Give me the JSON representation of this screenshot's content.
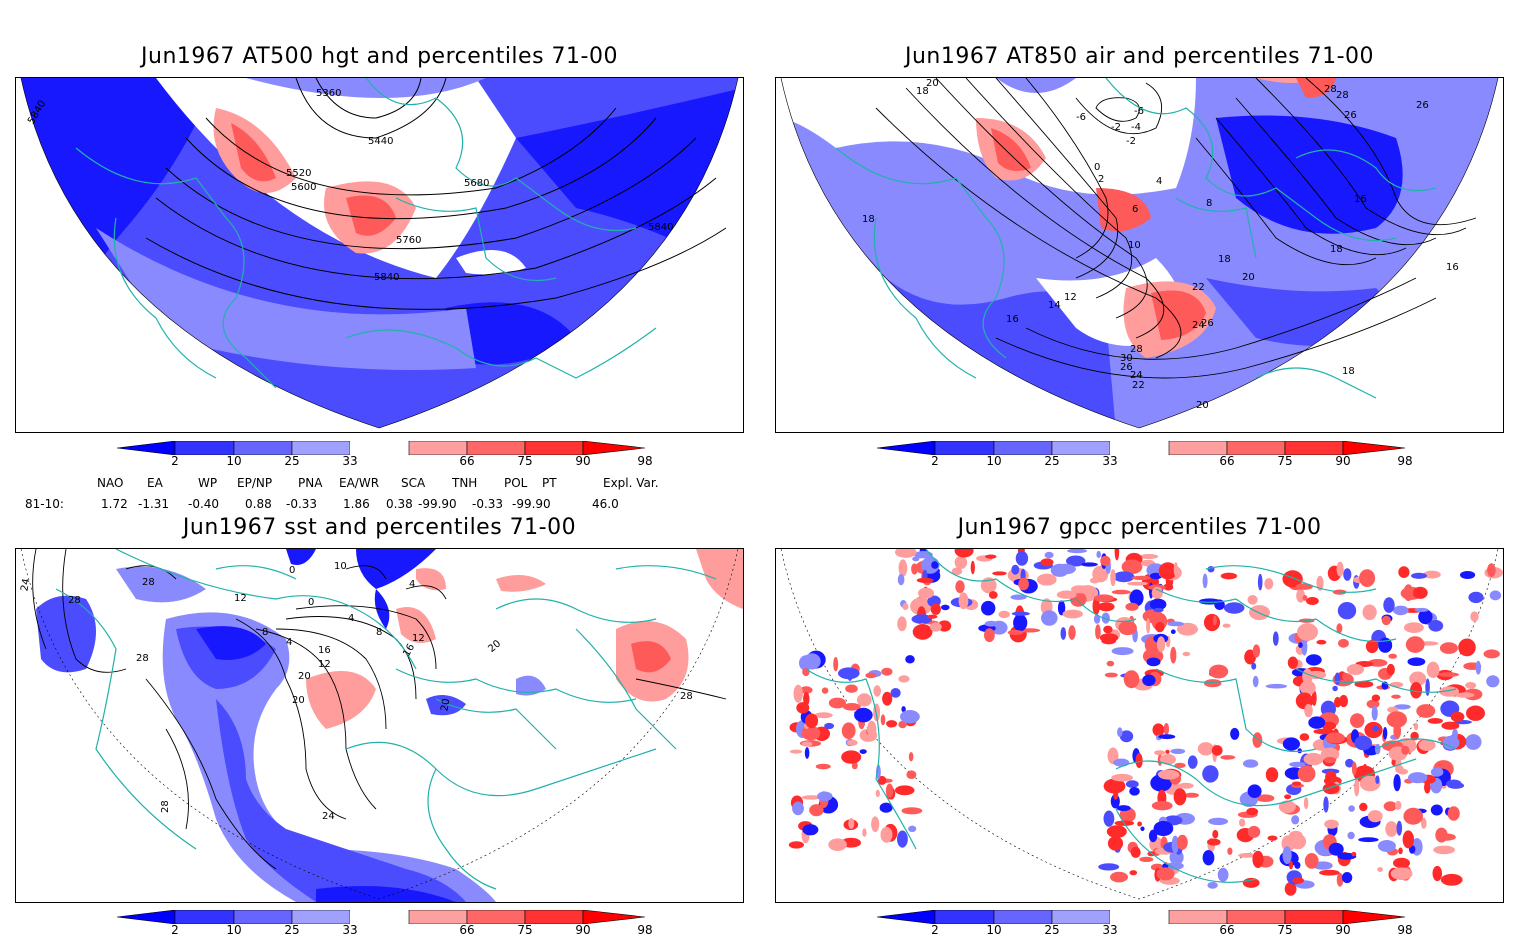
{
  "panels": [
    {
      "title": "Jun1967 AT500 hgt and percentiles 71-00",
      "contour_labels": [
        "5360",
        "5440",
        "5520",
        "5600",
        "5680",
        "5760",
        "5840",
        "5840",
        "5840"
      ]
    },
    {
      "title": "Jun1967 AT850 air and percentiles 71-00",
      "contour_labels": [
        "20",
        "18",
        "-6",
        "-6",
        "-2",
        "-4",
        "-2",
        "0",
        "2",
        "4",
        "6",
        "8",
        "10",
        "12",
        "14",
        "16",
        "18",
        "20",
        "22",
        "24",
        "26",
        "28",
        "30",
        "26",
        "24",
        "22",
        "20",
        "18",
        "16",
        "26",
        "28",
        "28",
        "26",
        "18",
        "16",
        "18"
      ]
    },
    {
      "title": "Jun1967 sst and percentiles 71-00",
      "contour_labels": [
        "24",
        "28",
        "28",
        "28",
        "12",
        "0",
        "10",
        "4",
        "0",
        "8",
        "4",
        "4",
        "8",
        "12",
        "16",
        "20",
        "12",
        "16",
        "20",
        "20",
        "24",
        "28",
        "20",
        "28"
      ]
    },
    {
      "title": "Jun1967 gpcc percentiles 71-00",
      "contour_labels": []
    }
  ],
  "colorbar": {
    "labels": [
      "2",
      "10",
      "25",
      "33",
      "66",
      "75",
      "90",
      "98"
    ],
    "colors": [
      "#0000ff",
      "#3333ff",
      "#6666ff",
      "#a0a0ff",
      "#ffffff",
      "#ffa0a0",
      "#ff6666",
      "#ff3333",
      "#ff0000"
    ]
  },
  "indices": {
    "names": [
      "NAO",
      "EA",
      "WP",
      "EP/NP",
      "PNA",
      "EA/WR",
      "SCA",
      "TNH",
      "POL",
      "PT",
      "Expl. Var."
    ],
    "row_label": "81-10:",
    "values": [
      "1.72",
      "-1.31",
      "-0.40",
      "0.88",
      "-0.33",
      "1.86",
      "0.38",
      "-99.90",
      "-0.33",
      "-99.90",
      "46.0"
    ]
  },
  "colors": {
    "coast": "#20b2aa",
    "contour": "#000000",
    "blue_dark": "#1818ff",
    "blue_mid": "#4c4cff",
    "blue_light": "#8a8aff",
    "red_light": "#ff9c9c",
    "red_mid": "#ff5a5a",
    "red_dark": "#ff2a2a"
  }
}
